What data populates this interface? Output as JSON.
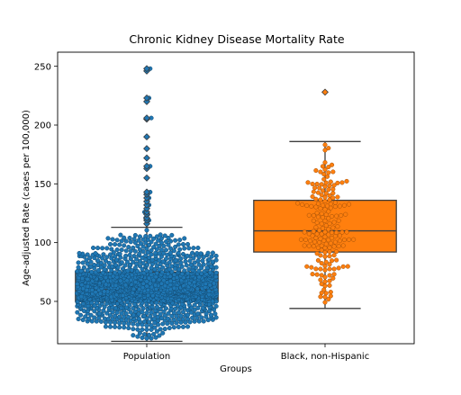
{
  "chart_data": {
    "type": "box",
    "title": "Chronic Kidney Disease Mortality Rate",
    "xlabel": "Groups",
    "ylabel": "Age-adjusted Rate (cases per 100,000)",
    "categories": [
      "Population",
      "Black, non-Hispanic"
    ],
    "y_ticks": [
      50,
      100,
      150,
      200,
      250
    ],
    "ylim": [
      14,
      262
    ],
    "grid": false,
    "overlay": "swarm",
    "colors": [
      "#1f77b4",
      "#ff7f0e"
    ],
    "boxes": [
      {
        "category": "Population",
        "whisker_low": 16,
        "q1": 50,
        "median": 60,
        "q3": 75,
        "whisker_high": 113,
        "outliers": [
          116,
          119,
          121,
          124,
          126,
          129,
          132,
          135,
          138,
          141,
          143,
          155,
          163,
          165,
          172,
          180,
          190,
          205,
          206,
          220,
          223,
          246,
          248
        ]
      },
      {
        "category": "Black, non-Hispanic",
        "whisker_low": 44,
        "q1": 92,
        "median": 110,
        "q3": 136,
        "whisker_high": 186,
        "outliers": [
          228
        ]
      }
    ]
  }
}
